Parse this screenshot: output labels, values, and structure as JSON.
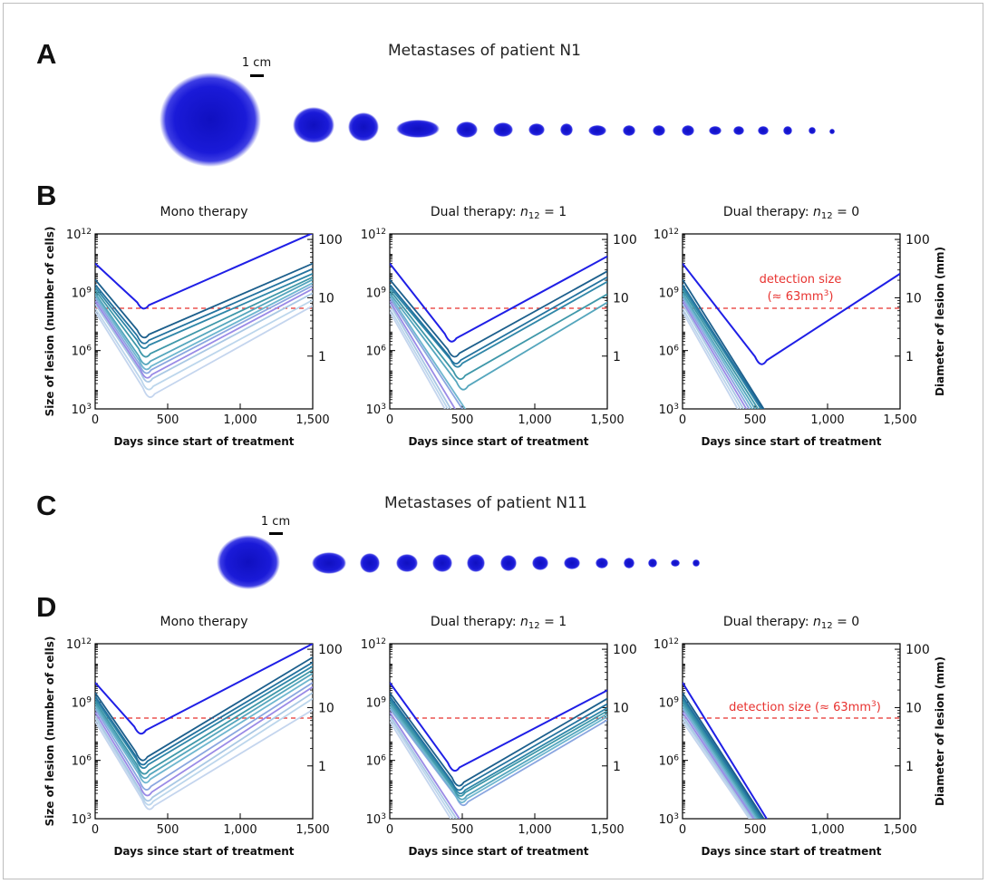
{
  "panels": {
    "A": {
      "letter": "A",
      "title": "Metastases of patient N1",
      "scale_label": "1 cm"
    },
    "B": {
      "letter": "B"
    },
    "C": {
      "letter": "C",
      "title": "Metastases of patient N11",
      "scale_label": "1 cm"
    },
    "D": {
      "letter": "D"
    }
  },
  "colors": {
    "lesion": "#1a1ad8",
    "detection_line": "#e8322f",
    "detection_text": "#e8322f",
    "palette": [
      "#1f1fe6",
      "#1c5f8c",
      "#23729e",
      "#2f86a8",
      "#3e97a9",
      "#55a6bd",
      "#6fb6cf",
      "#8aa6e0",
      "#9a8be6",
      "#a9c8e4",
      "#bcd6ec",
      "#c4d5ee"
    ]
  },
  "chart_data": [
    {
      "id": "B1",
      "type": "line",
      "title": "Mono therapy",
      "xlabel": "Days since start of treatment",
      "ylabel": "Size of lesion (number of cells)",
      "y2label": "",
      "xlim": [
        0,
        1500
      ],
      "ylim_log10": [
        3,
        12
      ],
      "x_ticks": [
        "0",
        "500",
        "1,000",
        "1,500"
      ],
      "y_ticks": [
        "10^3",
        "10^6",
        "10^9",
        "10^12"
      ],
      "y2_ticks": [
        "1",
        "10",
        "100"
      ],
      "detection_cells": 150000000,
      "detection_label": [],
      "series": [
        {
          "start": 30000000000.0,
          "min_x": 330,
          "min_y": 160000000.0,
          "end": 1100000000000.0
        },
        {
          "start": 4500000000.0,
          "min_x": 330,
          "min_y": 5000000.0,
          "end": 30000000000.0
        },
        {
          "start": 2500000000.0,
          "min_x": 330,
          "min_y": 2500000.0,
          "end": 16000000000.0
        },
        {
          "start": 1800000000.0,
          "min_x": 330,
          "min_y": 1400000.0,
          "end": 9000000000.0
        },
        {
          "start": 1300000000.0,
          "min_x": 340,
          "min_y": 500000.0,
          "end": 6000000000.0
        },
        {
          "start": 900000000.0,
          "min_x": 340,
          "min_y": 200000.0,
          "end": 4500000000.0
        },
        {
          "start": 700000000.0,
          "min_x": 345,
          "min_y": 110000.0,
          "end": 3000000000.0
        },
        {
          "start": 500000000.0,
          "min_x": 345,
          "min_y": 70000.0,
          "end": 2200000000.0
        },
        {
          "start": 350000000.0,
          "min_x": 350,
          "min_y": 40000.0,
          "end": 1500000000.0
        },
        {
          "start": 250000000.0,
          "min_x": 355,
          "min_y": 25000.0,
          "end": 900000000.0
        },
        {
          "start": 150000000.0,
          "min_x": 360,
          "min_y": 10000.0,
          "end": 400000000.0
        },
        {
          "start": 100000000.0,
          "min_x": 370,
          "min_y": 4000.0,
          "end": 200000000.0
        }
      ]
    },
    {
      "id": "B2",
      "type": "line",
      "title": "Dual therapy: n12 = 1",
      "xlabel": "Days since start of treatment",
      "ylabel": "",
      "y2label": "",
      "xlim": [
        0,
        1500
      ],
      "ylim_log10": [
        3,
        12
      ],
      "x_ticks": [
        "0",
        "500",
        "1,000",
        "1,500"
      ],
      "y_ticks": [
        "10^3",
        "10^6",
        "10^9",
        "10^12"
      ],
      "y2_ticks": [
        "1",
        "10",
        "100"
      ],
      "detection_cells": 150000000,
      "detection_label": [],
      "series": [
        {
          "start": 30000000000.0,
          "min_x": 420,
          "min_y": 3000000.0,
          "end": 70000000000.0
        },
        {
          "start": 4500000000.0,
          "min_x": 440,
          "min_y": 500000.0,
          "end": 12000000000.0
        },
        {
          "start": 2500000000.0,
          "min_x": 450,
          "min_y": 220000.0,
          "end": 6000000000.0
        },
        {
          "start": 1800000000.0,
          "min_x": 460,
          "min_y": 150000.0,
          "end": 3500000000.0
        },
        {
          "start": 1300000000.0,
          "min_x": 480,
          "min_y": 35000.0,
          "end": 800000000.0
        },
        {
          "start": 900000000.0,
          "min_x": 500,
          "min_y": 10000.0,
          "end": 300000000.0
        },
        {
          "start": 700000000.0,
          "min_x": 520,
          "min_y": 1000.0,
          "end": 5000000.0
        },
        {
          "start": 500000000.0,
          "min_x": 500,
          "min_y": 1000.0,
          "end": 1000.0
        },
        {
          "start": 350000000.0,
          "min_x": 450,
          "min_y": 1000.0,
          "end": 1000.0
        },
        {
          "start": 250000000.0,
          "min_x": 420,
          "min_y": 1000.0,
          "end": 1000.0
        },
        {
          "start": 150000000.0,
          "min_x": 400,
          "min_y": 1000.0,
          "end": 1000.0
        },
        {
          "start": 100000000.0,
          "min_x": 380,
          "min_y": 1000.0,
          "end": 1000.0
        }
      ]
    },
    {
      "id": "B3",
      "type": "line",
      "title": "Dual therapy: n12 = 0",
      "xlabel": "Days since start of treatment",
      "ylabel": "",
      "y2label": "Diameter of lesion (mm)",
      "xlim": [
        0,
        1500
      ],
      "ylim_log10": [
        3,
        12
      ],
      "x_ticks": [
        "0",
        "500",
        "1,000",
        "1,500"
      ],
      "y_ticks": [
        "10^3",
        "10^6",
        "10^9",
        "10^12"
      ],
      "y2_ticks": [
        "1",
        "10",
        "100"
      ],
      "detection_cells": 150000000,
      "detection_label": [
        "detection size",
        "(≈ 63mm",
        "3",
        ")"
      ],
      "series": [
        {
          "start": 30000000000.0,
          "min_x": 540,
          "min_y": 200000.0,
          "end": 9000000000.0
        },
        {
          "start": 4500000000.0,
          "min_x": 560,
          "min_y": 1000.0,
          "end": 1000.0
        },
        {
          "start": 2500000000.0,
          "min_x": 550,
          "min_y": 1000.0,
          "end": 1000.0
        },
        {
          "start": 1800000000.0,
          "min_x": 540,
          "min_y": 1000.0,
          "end": 1000.0
        },
        {
          "start": 1300000000.0,
          "min_x": 520,
          "min_y": 1000.0,
          "end": 1000.0
        },
        {
          "start": 900000000.0,
          "min_x": 500,
          "min_y": 1000.0,
          "end": 1000.0
        },
        {
          "start": 700000000.0,
          "min_x": 480,
          "min_y": 1000.0,
          "end": 1000.0
        },
        {
          "start": 500000000.0,
          "min_x": 460,
          "min_y": 1000.0,
          "end": 1000.0
        },
        {
          "start": 350000000.0,
          "min_x": 440,
          "min_y": 1000.0,
          "end": 1000.0
        },
        {
          "start": 250000000.0,
          "min_x": 420,
          "min_y": 1000.0,
          "end": 1000.0
        },
        {
          "start": 150000000.0,
          "min_x": 400,
          "min_y": 1000.0,
          "end": 1000.0
        },
        {
          "start": 100000000.0,
          "min_x": 380,
          "min_y": 1000.0,
          "end": 1000.0
        }
      ]
    },
    {
      "id": "D1",
      "type": "line",
      "title": "Mono therapy",
      "xlabel": "Days since start of treatment",
      "ylabel": "Size of lesion (number of cells)",
      "y2label": "",
      "xlim": [
        0,
        1500
      ],
      "ylim_log10": [
        3,
        12
      ],
      "x_ticks": [
        "0",
        "500",
        "1,000",
        "1,500"
      ],
      "y_ticks": [
        "10^3",
        "10^6",
        "10^9",
        "10^12"
      ],
      "y2_ticks": [
        "1",
        "10",
        "100"
      ],
      "detection_cells": 150000000,
      "detection_label": [],
      "series": [
        {
          "start": 10000000000.0,
          "min_x": 310,
          "min_y": 25000000.0,
          "end": 1000000000000.0
        },
        {
          "start": 3000000000.0,
          "min_x": 320,
          "min_y": 1000000.0,
          "end": 200000000000.0
        },
        {
          "start": 2000000000.0,
          "min_x": 320,
          "min_y": 600000.0,
          "end": 110000000000.0
        },
        {
          "start": 1500000000.0,
          "min_x": 325,
          "min_y": 400000.0,
          "end": 70000000000.0
        },
        {
          "start": 1100000000.0,
          "min_x": 330,
          "min_y": 200000.0,
          "end": 45000000000.0
        },
        {
          "start": 800000000.0,
          "min_x": 335,
          "min_y": 120000.0,
          "end": 30000000000.0
        },
        {
          "start": 600000000.0,
          "min_x": 340,
          "min_y": 70000.0,
          "end": 18000000000.0
        },
        {
          "start": 450000000.0,
          "min_x": 345,
          "min_y": 30000.0,
          "end": 10000000000.0
        },
        {
          "start": 300000000.0,
          "min_x": 350,
          "min_y": 15000.0,
          "end": 6000000000.0
        },
        {
          "start": 200000000.0,
          "min_x": 355,
          "min_y": 8000.0,
          "end": 3000000000.0
        },
        {
          "start": 150000000.0,
          "min_x": 360,
          "min_y": 5000.0,
          "end": 1500000000.0
        },
        {
          "start": 100000000.0,
          "min_x": 365,
          "min_y": 3000.0,
          "end": 400000000.0
        }
      ]
    },
    {
      "id": "D2",
      "type": "line",
      "title": "Dual therapy: n12 = 1",
      "xlabel": "Days since start of treatment",
      "ylabel": "",
      "y2label": "",
      "xlim": [
        0,
        1500
      ],
      "ylim_log10": [
        3,
        12
      ],
      "x_ticks": [
        "0",
        "500",
        "1,000",
        "1,500"
      ],
      "y_ticks": [
        "10^3",
        "10^6",
        "10^9",
        "10^12"
      ],
      "y2_ticks": [
        "1",
        "10",
        "100"
      ],
      "detection_cells": 150000000,
      "detection_label": [],
      "series": [
        {
          "start": 10000000000.0,
          "min_x": 440,
          "min_y": 300000.0,
          "end": 4000000000.0
        },
        {
          "start": 3000000000.0,
          "min_x": 470,
          "min_y": 50000.0,
          "end": 1500000000.0
        },
        {
          "start": 2000000000.0,
          "min_x": 470,
          "min_y": 30000.0,
          "end": 800000000.0
        },
        {
          "start": 1500000000.0,
          "min_x": 480,
          "min_y": 20000.0,
          "end": 500000000.0
        },
        {
          "start": 1100000000.0,
          "min_x": 480,
          "min_y": 15000.0,
          "end": 350000000.0
        },
        {
          "start": 800000000.0,
          "min_x": 490,
          "min_y": 10000.0,
          "end": 250000000.0
        },
        {
          "start": 600000000.0,
          "min_x": 490,
          "min_y": 7000.0,
          "end": 180000000.0
        },
        {
          "start": 450000000.0,
          "min_x": 500,
          "min_y": 5000.0,
          "end": 120000000.0
        },
        {
          "start": 300000000.0,
          "min_x": 480,
          "min_y": 1000.0,
          "end": 1000.0
        },
        {
          "start": 200000000.0,
          "min_x": 460,
          "min_y": 1000.0,
          "end": 1000.0
        },
        {
          "start": 150000000.0,
          "min_x": 440,
          "min_y": 1000.0,
          "end": 1000.0
        },
        {
          "start": 100000000.0,
          "min_x": 420,
          "min_y": 1000.0,
          "end": 1000.0
        }
      ]
    },
    {
      "id": "D3",
      "type": "line",
      "title": "Dual therapy: n12 = 0",
      "xlabel": "Days since start of treatment",
      "ylabel": "",
      "y2label": "Diameter of lesion (mm)",
      "xlim": [
        0,
        1500
      ],
      "ylim_log10": [
        3,
        12
      ],
      "x_ticks": [
        "0",
        "500",
        "1,000",
        "1,500"
      ],
      "y_ticks": [
        "10^3",
        "10^6",
        "10^9",
        "10^12"
      ],
      "y2_ticks": [
        "1",
        "10",
        "100"
      ],
      "detection_cells": 150000000,
      "detection_label": [
        "detection size (≈ 63mm",
        "3",
        ")"
      ],
      "series": [
        {
          "start": 10000000000.0,
          "min_x": 580,
          "min_y": 1000.0,
          "end": 1000.0
        },
        {
          "start": 3000000000.0,
          "min_x": 560,
          "min_y": 1000.0,
          "end": 1000.0
        },
        {
          "start": 2000000000.0,
          "min_x": 550,
          "min_y": 1000.0,
          "end": 1000.0
        },
        {
          "start": 1500000000.0,
          "min_x": 540,
          "min_y": 1000.0,
          "end": 1000.0
        },
        {
          "start": 1100000000.0,
          "min_x": 530,
          "min_y": 1000.0,
          "end": 1000.0
        },
        {
          "start": 800000000.0,
          "min_x": 520,
          "min_y": 1000.0,
          "end": 1000.0
        },
        {
          "start": 600000000.0,
          "min_x": 510,
          "min_y": 1000.0,
          "end": 1000.0
        },
        {
          "start": 450000000.0,
          "min_x": 500,
          "min_y": 1000.0,
          "end": 1000.0
        },
        {
          "start": 300000000.0,
          "min_x": 490,
          "min_y": 1000.0,
          "end": 1000.0
        },
        {
          "start": 200000000.0,
          "min_x": 480,
          "min_y": 1000.0,
          "end": 1000.0
        },
        {
          "start": 150000000.0,
          "min_x": 470,
          "min_y": 1000.0,
          "end": 1000.0
        },
        {
          "start": 100000000.0,
          "min_x": 460,
          "min_y": 1000.0,
          "end": 1000.0
        }
      ]
    }
  ]
}
